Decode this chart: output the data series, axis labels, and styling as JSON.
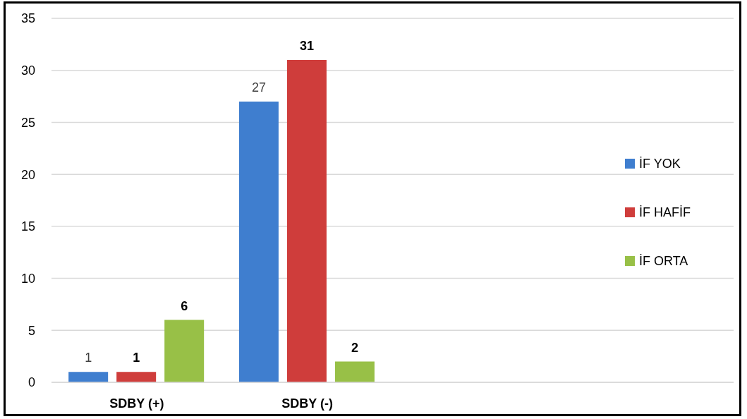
{
  "chart_data": {
    "type": "bar",
    "categories": [
      "SDBY (+)",
      "SDBY (-)",
      null,
      null
    ],
    "series": [
      {
        "name": "İF YOK",
        "color": "#3f7ecf",
        "values": [
          1,
          27,
          null,
          null
        ]
      },
      {
        "name": "İF HAFİF",
        "color": "#cf3d3b",
        "values": [
          1,
          31,
          null,
          null
        ]
      },
      {
        "name": "İF ORTA",
        "color": "#98c047",
        "values": [
          6,
          2,
          null,
          null
        ]
      }
    ],
    "ylim": [
      0,
      35
    ],
    "yticks": [
      0,
      5,
      10,
      15,
      20,
      25,
      30,
      35
    ],
    "grid": "y",
    "legend": "right",
    "data_labels": true
  }
}
